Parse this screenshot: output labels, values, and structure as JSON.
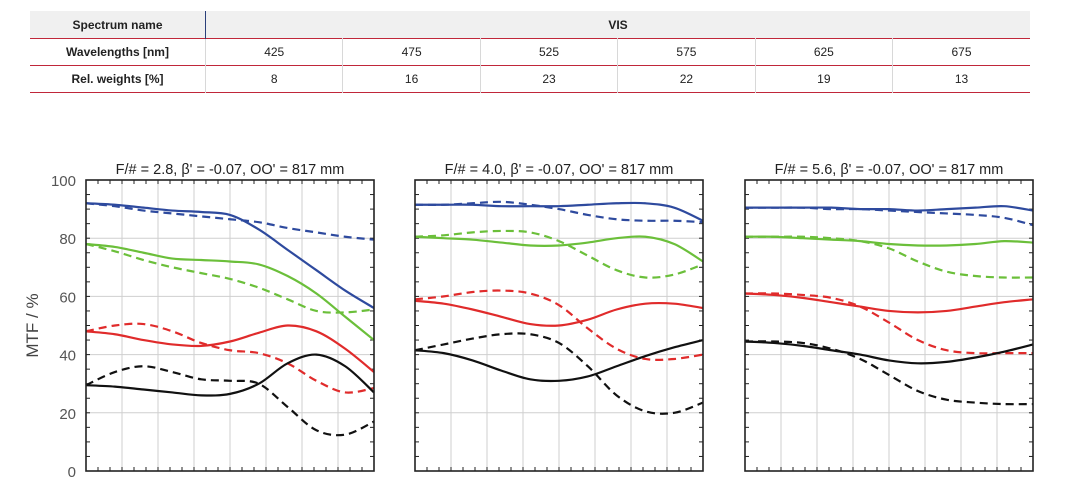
{
  "table": {
    "spectrum_label": "Spectrum name",
    "spectrum_value": "VIS",
    "wavelengths_label": "Wavelengths [nm]",
    "wavelengths": [
      "425",
      "475",
      "525",
      "575",
      "625",
      "675"
    ],
    "weights_label": "Rel. weights [%]",
    "weights": [
      "8",
      "16",
      "23",
      "22",
      "19",
      "13"
    ]
  },
  "chart_data": {
    "type": "line",
    "ylabel": "MTF / %",
    "ylim": [
      0,
      100
    ],
    "yticks": [
      "0",
      "20",
      "40",
      "60",
      "80",
      "100"
    ],
    "xlim": [
      0,
      1
    ],
    "grid": true,
    "colors": {
      "blue": "#2e4a9e",
      "green": "#6bbf3a",
      "red": "#e02b2b",
      "black": "#111111"
    },
    "panels": [
      {
        "title": "F/# = 2.8, β' = -0.07, OO' = 817 mm",
        "series": [
          {
            "color": "blue",
            "style": "solid",
            "x": [
              0,
              0.1,
              0.2,
              0.3,
              0.4,
              0.5,
              0.6,
              0.7,
              0.8,
              0.9,
              1.0
            ],
            "y": [
              92,
              91.5,
              90.5,
              89.5,
              89,
              88,
              83,
              76,
              69,
              62,
              56
            ]
          },
          {
            "color": "blue",
            "style": "dashed",
            "x": [
              0,
              0.1,
              0.2,
              0.3,
              0.4,
              0.5,
              0.6,
              0.7,
              0.8,
              0.9,
              1.0
            ],
            "y": [
              92,
              91,
              89.5,
              88.5,
              87.5,
              86.5,
              85.5,
              83.5,
              82,
              80.5,
              79.5
            ]
          },
          {
            "color": "green",
            "style": "solid",
            "x": [
              0,
              0.1,
              0.2,
              0.3,
              0.4,
              0.5,
              0.6,
              0.7,
              0.8,
              0.9,
              1.0
            ],
            "y": [
              78,
              77,
              75,
              73,
              72.5,
              72,
              71,
              67,
              61,
              53,
              45
            ]
          },
          {
            "color": "green",
            "style": "dashed",
            "x": [
              0,
              0.1,
              0.2,
              0.3,
              0.4,
              0.5,
              0.6,
              0.7,
              0.8,
              0.9,
              1.0
            ],
            "y": [
              78,
              75.5,
              72.5,
              70,
              68,
              66,
              63,
              59,
              55,
              54.5,
              55.5
            ]
          },
          {
            "color": "red",
            "style": "solid",
            "x": [
              0,
              0.1,
              0.2,
              0.3,
              0.4,
              0.5,
              0.6,
              0.7,
              0.8,
              0.9,
              1.0
            ],
            "y": [
              48,
              47,
              45,
              43.5,
              43,
              44.5,
              47.5,
              50,
              48,
              42,
              34
            ]
          },
          {
            "color": "red",
            "style": "dashed",
            "x": [
              0,
              0.1,
              0.2,
              0.3,
              0.4,
              0.5,
              0.6,
              0.7,
              0.8,
              0.9,
              1.0
            ],
            "y": [
              48,
              50,
              50.5,
              48,
              44,
              41.5,
              40.5,
              37,
              31,
              27,
              28.5
            ]
          },
          {
            "color": "black",
            "style": "solid",
            "x": [
              0,
              0.1,
              0.2,
              0.3,
              0.4,
              0.5,
              0.6,
              0.7,
              0.8,
              0.9,
              1.0
            ],
            "y": [
              29.5,
              29,
              28,
              27,
              26,
              26.5,
              30,
              37,
              40,
              36,
              27
            ]
          },
          {
            "color": "black",
            "style": "dashed",
            "x": [
              0,
              0.1,
              0.2,
              0.3,
              0.4,
              0.5,
              0.6,
              0.7,
              0.8,
              0.9,
              1.0
            ],
            "y": [
              29.5,
              34,
              36,
              34,
              31.5,
              31,
              30,
              22,
              14,
              12.5,
              17
            ]
          }
        ]
      },
      {
        "title": "F/# = 4.0, β' = -0.07, OO' = 817 mm",
        "series": [
          {
            "color": "blue",
            "style": "solid",
            "x": [
              0,
              0.1,
              0.2,
              0.3,
              0.4,
              0.5,
              0.6,
              0.7,
              0.8,
              0.9,
              1.0
            ],
            "y": [
              91.5,
              91.5,
              91.5,
              91,
              91,
              91,
              91.5,
              92,
              92,
              90.5,
              86
            ]
          },
          {
            "color": "blue",
            "style": "dashed",
            "x": [
              0,
              0.1,
              0.2,
              0.3,
              0.4,
              0.5,
              0.6,
              0.7,
              0.8,
              0.9,
              1.0
            ],
            "y": [
              91.5,
              91.5,
              92,
              92.5,
              91.5,
              90,
              88,
              86.5,
              86,
              86,
              85.5
            ]
          },
          {
            "color": "green",
            "style": "solid",
            "x": [
              0,
              0.1,
              0.2,
              0.3,
              0.4,
              0.5,
              0.6,
              0.7,
              0.8,
              0.9,
              1.0
            ],
            "y": [
              80.5,
              80,
              79.5,
              78.5,
              77.5,
              77.5,
              78.5,
              80,
              80.5,
              78,
              72
            ]
          },
          {
            "color": "green",
            "style": "dashed",
            "x": [
              0,
              0.1,
              0.2,
              0.3,
              0.4,
              0.5,
              0.6,
              0.7,
              0.8,
              0.9,
              1.0
            ],
            "y": [
              80.5,
              81,
              82,
              82.5,
              82,
              79,
              74,
              69,
              66.5,
              67.5,
              71
            ]
          },
          {
            "color": "red",
            "style": "solid",
            "x": [
              0,
              0.1,
              0.2,
              0.3,
              0.4,
              0.5,
              0.6,
              0.7,
              0.8,
              0.9,
              1.0
            ],
            "y": [
              58.5,
              57.5,
              55.5,
              53,
              50.5,
              50,
              52,
              55.5,
              57.5,
              57.5,
              56
            ]
          },
          {
            "color": "red",
            "style": "dashed",
            "x": [
              0,
              0.1,
              0.2,
              0.3,
              0.4,
              0.5,
              0.6,
              0.7,
              0.8,
              0.9,
              1.0
            ],
            "y": [
              59,
              60,
              61.5,
              62,
              61,
              57,
              49,
              42,
              38.5,
              38.5,
              40
            ]
          },
          {
            "color": "black",
            "style": "solid",
            "x": [
              0,
              0.1,
              0.2,
              0.3,
              0.4,
              0.5,
              0.6,
              0.7,
              0.8,
              0.9,
              1.0
            ],
            "y": [
              41.5,
              40.5,
              38,
              34.5,
              31.5,
              31,
              32.5,
              36,
              39.5,
              42.5,
              45
            ]
          },
          {
            "color": "black",
            "style": "dashed",
            "x": [
              0,
              0.1,
              0.2,
              0.3,
              0.4,
              0.5,
              0.6,
              0.7,
              0.8,
              0.9,
              1.0
            ],
            "y": [
              41.5,
              43.5,
              45.5,
              47,
              47,
              44,
              36,
              26,
              20.5,
              20,
              23.5
            ]
          }
        ]
      },
      {
        "title": "F/# = 5.6, β' = -0.07, OO' = 817 mm",
        "series": [
          {
            "color": "blue",
            "style": "solid",
            "x": [
              0,
              0.1,
              0.2,
              0.3,
              0.4,
              0.5,
              0.6,
              0.7,
              0.8,
              0.9,
              1.0
            ],
            "y": [
              90.5,
              90.5,
              90.5,
              90.5,
              90,
              90,
              89.5,
              90,
              90.5,
              91,
              89.5
            ]
          },
          {
            "color": "blue",
            "style": "dashed",
            "x": [
              0,
              0.1,
              0.2,
              0.3,
              0.4,
              0.5,
              0.6,
              0.7,
              0.8,
              0.9,
              1.0
            ],
            "y": [
              90.5,
              90.5,
              90.5,
              90,
              90,
              89.5,
              89,
              88.5,
              88,
              87,
              84.5
            ]
          },
          {
            "color": "green",
            "style": "solid",
            "x": [
              0,
              0.1,
              0.2,
              0.3,
              0.4,
              0.5,
              0.6,
              0.7,
              0.8,
              0.9,
              1.0
            ],
            "y": [
              80.5,
              80.5,
              80,
              79.5,
              79,
              78,
              77.5,
              77.5,
              78,
              79,
              78.5
            ]
          },
          {
            "color": "green",
            "style": "dashed",
            "x": [
              0,
              0.1,
              0.2,
              0.3,
              0.4,
              0.5,
              0.6,
              0.7,
              0.8,
              0.9,
              1.0
            ],
            "y": [
              80.5,
              80.5,
              80.5,
              80,
              79,
              76.5,
              72,
              68.5,
              67,
              66.5,
              66.5
            ]
          },
          {
            "color": "red",
            "style": "solid",
            "x": [
              0,
              0.1,
              0.2,
              0.3,
              0.4,
              0.5,
              0.6,
              0.7,
              0.8,
              0.9,
              1.0
            ],
            "y": [
              61,
              60.5,
              59.5,
              58,
              56.5,
              55,
              54.5,
              55,
              56.5,
              58,
              59
            ]
          },
          {
            "color": "red",
            "style": "dashed",
            "x": [
              0,
              0.1,
              0.2,
              0.3,
              0.4,
              0.5,
              0.6,
              0.7,
              0.8,
              0.9,
              1.0
            ],
            "y": [
              61,
              61,
              60.5,
              59.5,
              56.5,
              51,
              45,
              41.5,
              40.5,
              40.5,
              40.5
            ]
          },
          {
            "color": "black",
            "style": "solid",
            "x": [
              0,
              0.1,
              0.2,
              0.3,
              0.4,
              0.5,
              0.6,
              0.7,
              0.8,
              0.9,
              1.0
            ],
            "y": [
              44.5,
              44,
              43,
              41.5,
              40,
              38,
              37,
              37.5,
              39,
              41,
              43.5
            ]
          },
          {
            "color": "black",
            "style": "dashed",
            "x": [
              0,
              0.1,
              0.2,
              0.3,
              0.4,
              0.5,
              0.6,
              0.7,
              0.8,
              0.9,
              1.0
            ],
            "y": [
              44.5,
              44.5,
              44,
              42,
              38.5,
              33,
              27.5,
              24.5,
              23.5,
              23,
              23
            ]
          }
        ]
      }
    ]
  }
}
